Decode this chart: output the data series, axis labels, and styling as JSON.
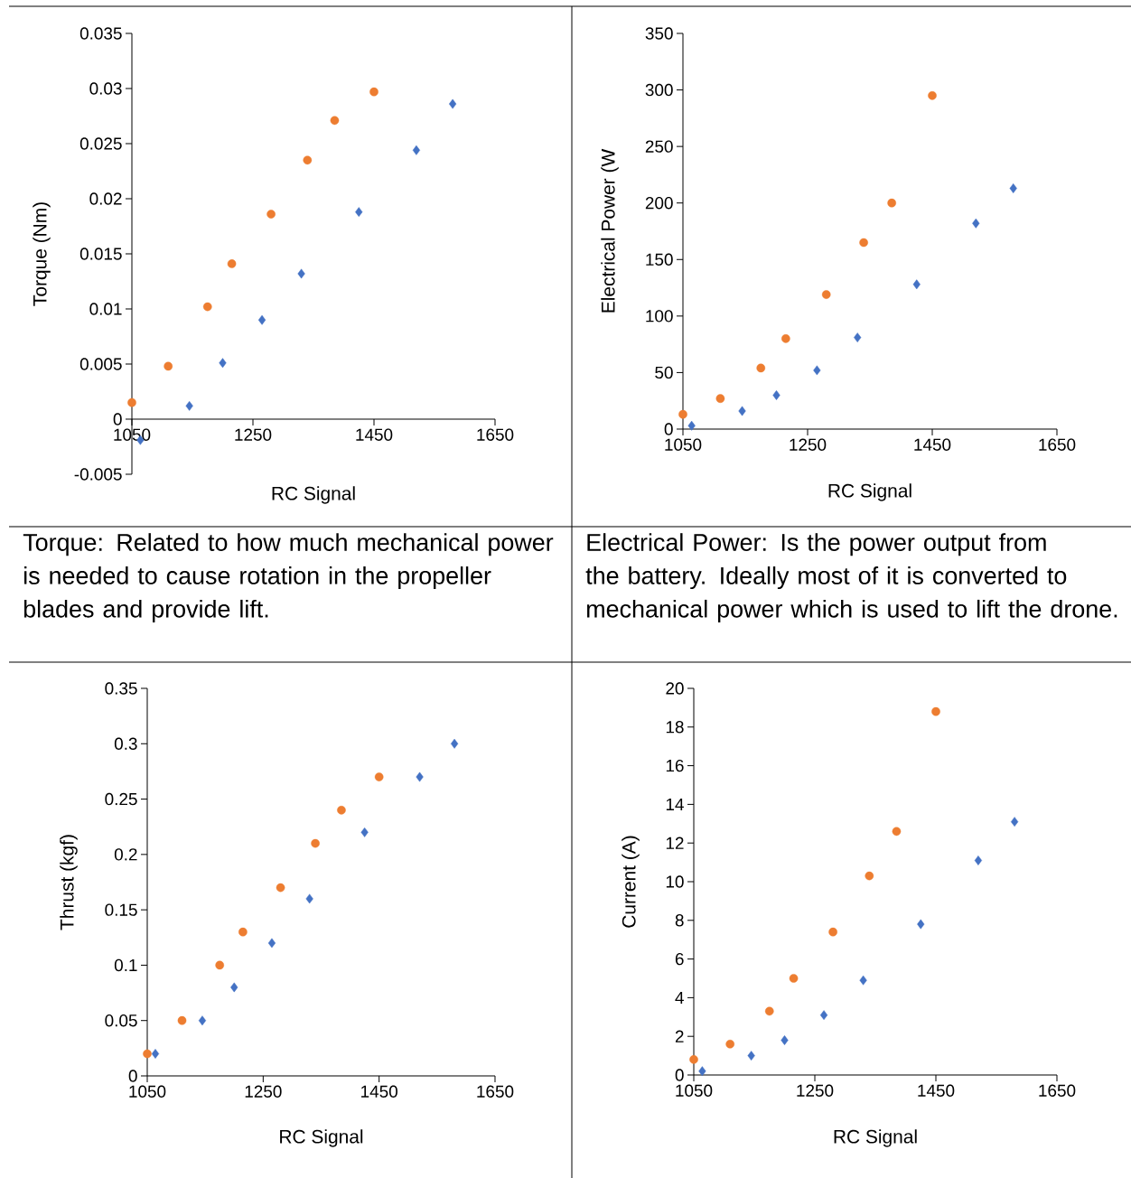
{
  "chart_data": [
    {
      "type": "scatter",
      "xlabel": "RC Signal",
      "ylabel": "Torque (Nm)",
      "xlim": [
        1050,
        1650
      ],
      "xticks": [
        1050,
        1250,
        1450,
        1650
      ],
      "ylim": [
        -0.005,
        0.035
      ],
      "yticks": [
        -0.005,
        0,
        0.005,
        0.01,
        0.015,
        0.02,
        0.025,
        0.03,
        0.035
      ],
      "series": [
        {
          "color": "#4472c4",
          "marker": "diamond",
          "x": [
            1064,
            1145,
            1200,
            1265,
            1330,
            1425,
            1520,
            1580
          ],
          "values": [
            -0.0019,
            0.0012,
            0.0051,
            0.009,
            0.0132,
            0.0188,
            0.0244,
            0.0286
          ]
        },
        {
          "color": "#ed7d31",
          "marker": "circle",
          "x": [
            1050,
            1110,
            1175,
            1215,
            1280,
            1340,
            1385,
            1450
          ],
          "values": [
            0.0015,
            0.0048,
            0.0102,
            0.0141,
            0.0186,
            0.0235,
            0.0271,
            0.0297
          ]
        }
      ],
      "annotations": [
        "Torque: Related to how much mechanical power is needed to cause rotation in the propeller blades and provide lift."
      ]
    },
    {
      "type": "scatter",
      "xlabel": "RC Signal",
      "ylabel": "Electrical Power (W",
      "xlim": [
        1050,
        1650
      ],
      "xticks": [
        1050,
        1250,
        1450,
        1650
      ],
      "ylim": [
        0,
        350
      ],
      "yticks": [
        0,
        50,
        100,
        150,
        200,
        250,
        300,
        350
      ],
      "series": [
        {
          "color": "#4472c4",
          "marker": "diamond",
          "x": [
            1064,
            1145,
            1200,
            1265,
            1330,
            1425,
            1520,
            1580
          ],
          "values": [
            3,
            16,
            30,
            52,
            81,
            128,
            182,
            213
          ]
        },
        {
          "color": "#ed7d31",
          "marker": "circle",
          "x": [
            1050,
            1110,
            1175,
            1215,
            1280,
            1340,
            1385,
            1450
          ],
          "values": [
            13,
            27,
            54,
            80,
            119,
            165,
            200,
            295
          ]
        }
      ],
      "annotations": [
        "Electrical Power: Is the power output from the battery. Ideally most of it is converted to mechanical power which is used to lift the drone."
      ]
    },
    {
      "type": "scatter",
      "xlabel": "RC Signal",
      "ylabel": "Thrust (kgf)",
      "xlim": [
        1050,
        1650
      ],
      "xticks": [
        1050,
        1250,
        1450,
        1650
      ],
      "ylim": [
        0,
        0.35
      ],
      "yticks": [
        0,
        0.05,
        0.1,
        0.15,
        0.2,
        0.25,
        0.3,
        0.35
      ],
      "series": [
        {
          "color": "#4472c4",
          "marker": "diamond",
          "x": [
            1064,
            1145,
            1200,
            1265,
            1330,
            1425,
            1520,
            1580
          ],
          "values": [
            0.02,
            0.05,
            0.08,
            0.12,
            0.16,
            0.22,
            0.27,
            0.3
          ]
        },
        {
          "color": "#ed7d31",
          "marker": "circle",
          "x": [
            1050,
            1110,
            1175,
            1215,
            1280,
            1340,
            1385,
            1450
          ],
          "values": [
            0.02,
            0.05,
            0.1,
            0.13,
            0.17,
            0.21,
            0.24,
            0.27
          ]
        }
      ]
    },
    {
      "type": "scatter",
      "xlabel": "RC Signal",
      "ylabel": "Current (A)",
      "xlim": [
        1050,
        1650
      ],
      "xticks": [
        1050,
        1250,
        1450,
        1650
      ],
      "ylim": [
        0,
        20
      ],
      "yticks": [
        0,
        2,
        4,
        6,
        8,
        10,
        12,
        14,
        16,
        18,
        20
      ],
      "series": [
        {
          "color": "#4472c4",
          "marker": "diamond",
          "x": [
            1064,
            1145,
            1200,
            1265,
            1330,
            1425,
            1520,
            1580
          ],
          "values": [
            0.2,
            1.0,
            1.8,
            3.1,
            4.9,
            7.8,
            11.1,
            13.1
          ]
        },
        {
          "color": "#ed7d31",
          "marker": "circle",
          "x": [
            1050,
            1110,
            1175,
            1215,
            1280,
            1340,
            1385,
            1450
          ],
          "values": [
            0.8,
            1.6,
            3.3,
            5.0,
            7.4,
            10.3,
            12.6,
            18.8
          ]
        }
      ]
    }
  ]
}
